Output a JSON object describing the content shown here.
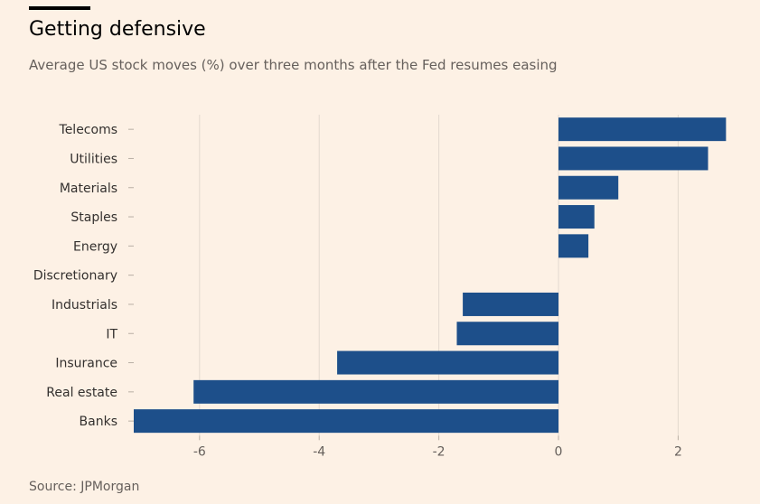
{
  "header": {
    "title": "Getting defensive",
    "subtitle": "Average US stock moves (%) over three months after the Fed resumes easing"
  },
  "footer": {
    "source": "Source: JPMorgan"
  },
  "colors": {
    "bar": "#1d4f8a",
    "grid": "#e3d9cf",
    "background": "#fdf1e5",
    "text": "#33302e"
  },
  "chart_data": {
    "type": "bar",
    "orientation": "horizontal",
    "categories": [
      "Telecoms",
      "Utilities",
      "Materials",
      "Staples",
      "Energy",
      "Discretionary",
      "Industrials",
      "IT",
      "Insurance",
      "Real estate",
      "Banks"
    ],
    "values": [
      2.8,
      2.5,
      1.0,
      0.6,
      0.5,
      0.0,
      -1.6,
      -1.7,
      -3.7,
      -6.1,
      -7.1
    ],
    "xlim": [
      -7.1,
      2.9
    ],
    "xticks": [
      -6,
      -4,
      -2,
      0,
      2
    ],
    "xtick_labels": [
      "-6",
      "-4",
      "-2",
      "0",
      "2"
    ],
    "grid": true
  }
}
